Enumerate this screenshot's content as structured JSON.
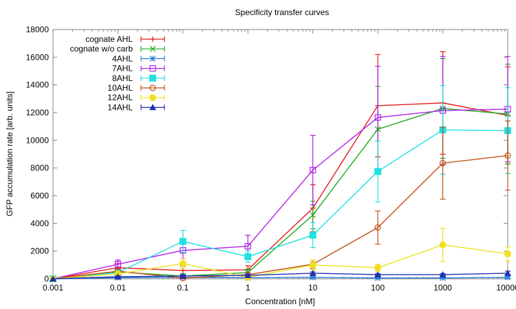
{
  "chart_data": {
    "type": "line",
    "title": "Specificity transfer curves",
    "xlabel": "Concentration [nM]",
    "ylabel": "GFP accumulation rate [arb. units]",
    "xscale": "log",
    "x": [
      0.001,
      0.01,
      0.1,
      1,
      10,
      100,
      1000,
      10000
    ],
    "x_tick_labels": [
      "0.001",
      "0.01",
      "0.1",
      "1",
      "10",
      "100",
      "1000",
      "10000"
    ],
    "xlim": [
      0.001,
      10000
    ],
    "ylim": [
      0,
      18000
    ],
    "y_ticks": [
      0,
      2000,
      4000,
      6000,
      8000,
      10000,
      12000,
      14000,
      16000,
      18000
    ],
    "y_tick_labels": [
      "0",
      "2000",
      "4000",
      "6000",
      "8000",
      "10000",
      "12000",
      "14000",
      "16000",
      "18000"
    ],
    "grid": false,
    "legend_position": "top-left",
    "series": [
      {
        "name": "cognate AHL",
        "color": "#e41a1c",
        "marker": "plus",
        "values": [
          0,
          800,
          600,
          650,
          5100,
          12500,
          12700,
          11800
        ],
        "errors": [
          0,
          300,
          300,
          300,
          1700,
          3700,
          3700,
          3500
        ]
      },
      {
        "name": "cognate w/o carb",
        "color": "#1aaa1a",
        "marker": "cross",
        "values": [
          0,
          500,
          200,
          450,
          4600,
          10800,
          12300,
          11900
        ],
        "errors": [
          0,
          200,
          150,
          250,
          1000,
          3100,
          3600,
          3600
        ]
      },
      {
        "name": "4AHL",
        "color": "#2a7fd8",
        "marker": "star",
        "values": [
          0,
          80,
          100,
          80,
          100,
          60,
          60,
          100
        ],
        "errors": [
          0,
          60,
          60,
          60,
          60,
          60,
          60,
          80
        ]
      },
      {
        "name": "7AHL",
        "color": "#b020e8",
        "marker": "square-open",
        "values": [
          0,
          1050,
          2050,
          2350,
          7850,
          11650,
          12150,
          12250
        ],
        "errors": [
          0,
          300,
          600,
          800,
          2500,
          3700,
          3900,
          3800
        ]
      },
      {
        "name": "8AHL",
        "color": "#20e0e0",
        "marker": "square-filled",
        "values": [
          0,
          450,
          2700,
          1600,
          3150,
          7750,
          10750,
          10700
        ],
        "errors": [
          0,
          200,
          800,
          400,
          900,
          2200,
          3200,
          3100
        ]
      },
      {
        "name": "10AHL",
        "color": "#c05010",
        "marker": "circle-open",
        "values": [
          0,
          550,
          50,
          300,
          1050,
          3700,
          8350,
          8900
        ],
        "errors": [
          0,
          150,
          100,
          150,
          300,
          1200,
          2600,
          2500
        ]
      },
      {
        "name": "12AHL",
        "color": "#f0e020",
        "marker": "circle-filled",
        "values": [
          0,
          350,
          1100,
          100,
          1000,
          800,
          2450,
          1800
        ],
        "errors": [
          0,
          200,
          350,
          100,
          350,
          250,
          1200,
          500
        ]
      },
      {
        "name": "14AHL",
        "color": "#2030b0",
        "marker": "triangle-filled",
        "values": [
          0,
          150,
          200,
          250,
          400,
          300,
          300,
          400
        ],
        "errors": [
          0,
          60,
          60,
          80,
          100,
          80,
          80,
          150
        ]
      }
    ]
  }
}
